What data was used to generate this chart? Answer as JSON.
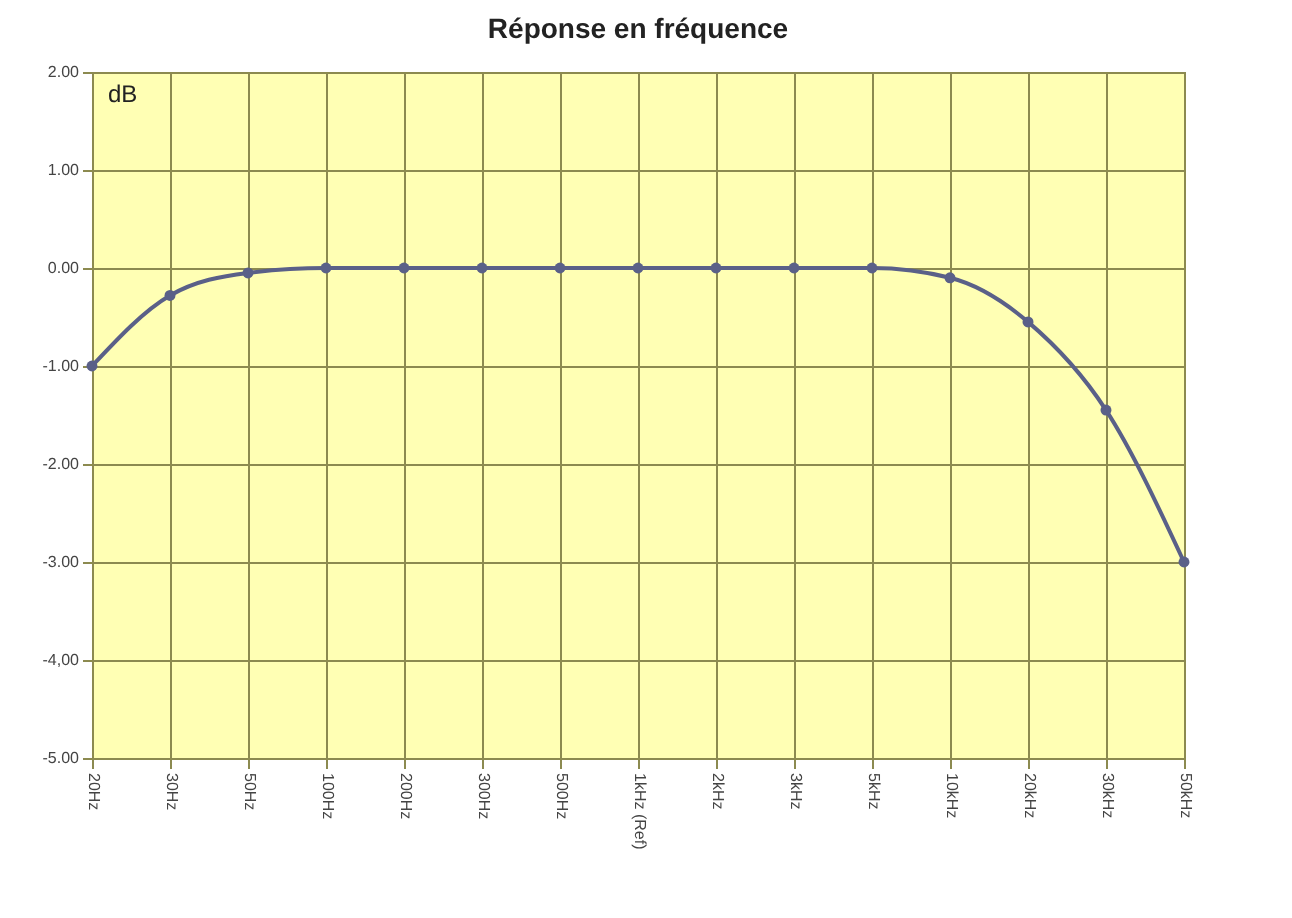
{
  "chart_data": {
    "type": "line",
    "title": "Réponse en fréquence",
    "categories": [
      "20Hz",
      "30Hz",
      "50Hz",
      "100Hz",
      "200Hz",
      "300Hz",
      "500Hz",
      "1kHz (Ref)",
      "2kHz",
      "3kHz",
      "5kHz",
      "10kHz",
      "20kHz",
      "30kHz",
      "50kHz"
    ],
    "series": [
      {
        "color": "#5a6088",
        "values": [
          -1.0,
          -0.28,
          -0.05,
          0,
          0,
          0,
          0,
          0,
          0,
          0,
          0,
          -0.1,
          -0.55,
          -1.45,
          -3.0
        ]
      }
    ],
    "ylim": [
      -5,
      2
    ],
    "yticks": [
      {
        "value": 2,
        "label": "2.00"
      },
      {
        "value": 1,
        "label": "1.00"
      },
      {
        "value": 0,
        "label": "0.00"
      },
      {
        "value": -1,
        "label": "-1.00"
      },
      {
        "value": -2,
        "label": "-2.00"
      },
      {
        "value": -3,
        "label": "-3.00"
      },
      {
        "value": -4,
        "label": "-4,00"
      },
      {
        "value": -5,
        "label": "-5.00"
      }
    ],
    "annotations": [
      "dB"
    ],
    "grid": true,
    "marker": "circle",
    "line_style": "solid",
    "legend": false
  }
}
